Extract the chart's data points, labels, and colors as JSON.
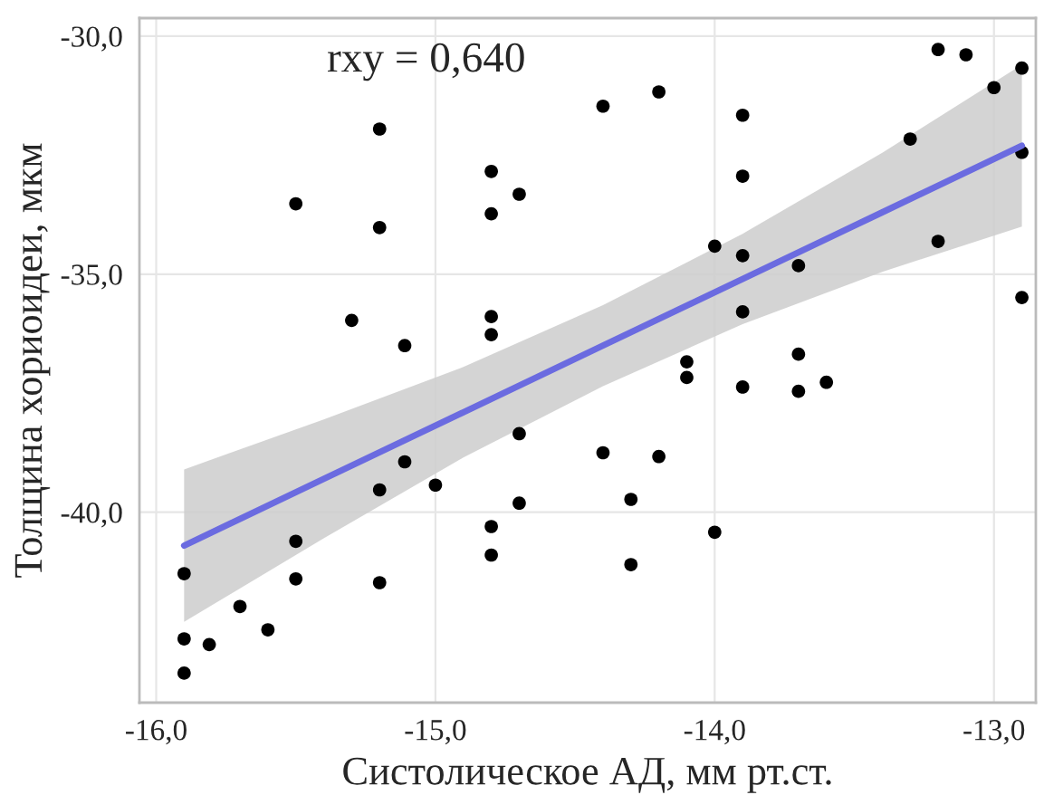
{
  "chart_data": {
    "type": "scatter",
    "xlabel": "Систолическое АД, мм рт.ст.",
    "ylabel": "Толщина хориоидеи, мкм",
    "annotations": [
      "rxy = 0,640"
    ],
    "xlim": [
      -16.06,
      -12.85
    ],
    "ylim": [
      -44.0,
      -29.62
    ],
    "xticks": [
      {
        "value": -16,
        "label": "-16,0"
      },
      {
        "value": -15,
        "label": "-15,0"
      },
      {
        "value": -14,
        "label": "-14,0"
      },
      {
        "value": -13,
        "label": "-13,0"
      }
    ],
    "yticks": [
      {
        "value": -40,
        "label": "-40,0"
      },
      {
        "value": -35,
        "label": "-35,0"
      },
      {
        "value": -30,
        "label": "-30,0"
      }
    ],
    "grid": true,
    "series": [
      {
        "type": "line",
        "color": "#6b6be0",
        "x": [
          -15.9,
          -15.4,
          -14.9,
          -14.4,
          -13.9,
          -13.4,
          -12.9
        ],
        "values": [
          -40.7,
          -39.3,
          -37.9,
          -36.5,
          -35.1,
          -33.7,
          -32.3
        ],
        "lower": [
          -42.3,
          -40.55,
          -38.85,
          -37.35,
          -36.05,
          -34.95,
          -34.0
        ],
        "upper": [
          -39.1,
          -38.05,
          -36.95,
          -35.65,
          -34.15,
          -32.45,
          -30.6
        ]
      },
      {
        "color": "#000000",
        "marker": "circle",
        "x": [
          -15.9,
          -15.5,
          -15.5,
          -15.7,
          -15.6,
          -15.9,
          -15.81,
          -15.9,
          -15.2,
          -15.11,
          -15.0,
          -15.2,
          -14.8,
          -14.8,
          -14.7,
          -14.7,
          -15.11,
          -15.2,
          -15.5,
          -15.2,
          -14.8,
          -14.8,
          -14.7,
          -15.3,
          -14.8,
          -14.8,
          -14.4,
          -14.2,
          -13.9,
          -13.9,
          -14.0,
          -13.9,
          -13.7,
          -13.9,
          -13.7,
          -14.1,
          -14.1,
          -13.9,
          -13.7,
          -13.6,
          -13.2,
          -13.1,
          -12.9,
          -13.0,
          -13.3,
          -12.9,
          -13.2,
          -12.9,
          -14.4,
          -14.2,
          -14.3,
          -14.0,
          -14.3
        ],
        "values": [
          -41.29,
          -40.61,
          -41.4,
          -41.98,
          -42.47,
          -42.66,
          -42.78,
          -43.38,
          -39.53,
          -38.94,
          -39.43,
          -41.48,
          -40.3,
          -40.9,
          -39.81,
          -38.35,
          -36.5,
          -31.95,
          -33.52,
          -34.02,
          -32.84,
          -33.73,
          -33.32,
          -35.97,
          -35.89,
          -36.27,
          -31.47,
          -31.17,
          -31.66,
          -32.94,
          -34.41,
          -34.61,
          -34.82,
          -35.79,
          -36.68,
          -36.84,
          -37.17,
          -37.37,
          -37.46,
          -37.27,
          -30.28,
          -30.39,
          -30.67,
          -31.08,
          -32.16,
          -32.44,
          -34.31,
          -35.49,
          -38.75,
          -38.83,
          -39.73,
          -40.42,
          -41.1
        ]
      }
    ]
  }
}
